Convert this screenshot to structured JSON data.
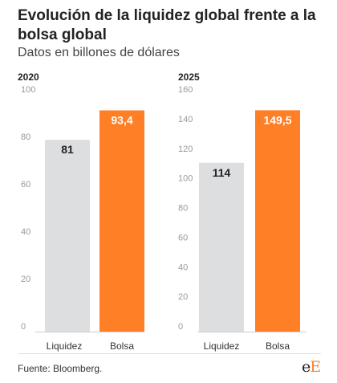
{
  "header": {
    "title": "Evolución de la liquidez global frente a la bolsa global",
    "subtitle": "Datos en billones de dólares"
  },
  "footer": {
    "source": "Fuente: Bloomberg.",
    "logo_left": "e",
    "logo_right": "E"
  },
  "colors": {
    "liquidez": "#dcdee0",
    "bolsa": "#ff7f27",
    "axis_text": "#999999",
    "gridline": "#e6e6e6"
  },
  "chart_data": [
    {
      "type": "bar",
      "title": "2020",
      "categories": [
        "Liquidez",
        "Bolsa"
      ],
      "values": [
        81,
        93.4
      ],
      "value_labels": [
        "81",
        "93,4"
      ],
      "ylim": [
        0,
        100
      ],
      "yticks": [
        0,
        20,
        40,
        60,
        80,
        100
      ],
      "grid": false
    },
    {
      "type": "bar",
      "title": "2025",
      "categories": [
        "Liquidez",
        "Bolsa"
      ],
      "values": [
        114,
        149.5
      ],
      "value_labels": [
        "114",
        "149,5"
      ],
      "ylim": [
        0,
        160
      ],
      "yticks": [
        0,
        20,
        40,
        60,
        80,
        100,
        120,
        140,
        160
      ],
      "grid": false
    }
  ]
}
